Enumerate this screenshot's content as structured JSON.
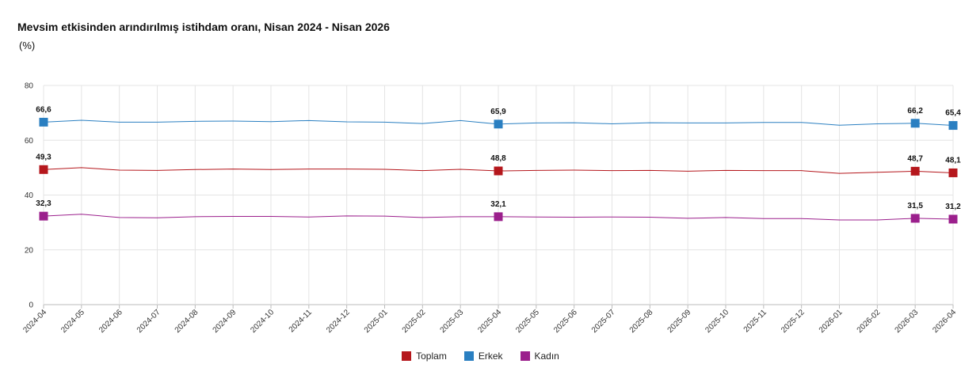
{
  "chart_data": {
    "type": "line",
    "title": "Mevsim etkisinden arındırılmış istihdam oranı, Nisan 2024 - Nisan 2026",
    "subtitle": "(%)",
    "ylim": [
      0,
      80
    ],
    "yticks": [
      0,
      20,
      40,
      60,
      80
    ],
    "grid": true,
    "legend_position": "bottom-center",
    "categories": [
      "2024-04",
      "2024-05",
      "2024-06",
      "2024-07",
      "2024-08",
      "2024-09",
      "2024-10",
      "2024-11",
      "2024-12",
      "2025-01",
      "2025-02",
      "2025-03",
      "2025-04",
      "2025-05",
      "2025-06",
      "2025-07",
      "2025-08",
      "2025-09",
      "2025-10",
      "2025-11",
      "2025-12",
      "2026-01",
      "2026-02",
      "2026-03",
      "2026-04"
    ],
    "series": [
      {
        "name": "Toplam",
        "color": "#b5171c",
        "values": [
          49.3,
          50.0,
          49.1,
          49.0,
          49.3,
          49.5,
          49.3,
          49.5,
          49.5,
          49.4,
          48.9,
          49.4,
          48.8,
          49.0,
          49.1,
          48.9,
          49.0,
          48.7,
          49.0,
          48.9,
          48.9,
          47.9,
          48.3,
          48.7,
          48.1
        ],
        "labels": {
          "0": "49,3",
          "12": "48,8",
          "23": "48,7",
          "24": "48,1"
        }
      },
      {
        "name": "Erkek",
        "color": "#2a7fc1",
        "values": [
          66.6,
          67.3,
          66.6,
          66.6,
          66.9,
          67.0,
          66.8,
          67.2,
          66.7,
          66.6,
          66.1,
          67.2,
          65.9,
          66.3,
          66.4,
          66.0,
          66.4,
          66.3,
          66.3,
          66.5,
          66.5,
          65.5,
          66.0,
          66.2,
          65.4
        ],
        "labels": {
          "0": "66,6",
          "12": "65,9",
          "23": "66,2",
          "24": "65,4"
        }
      },
      {
        "name": "Kadın",
        "color": "#9b1f8c",
        "values": [
          32.3,
          33.0,
          31.8,
          31.7,
          32.1,
          32.2,
          32.2,
          32.0,
          32.4,
          32.3,
          31.8,
          32.1,
          32.1,
          32.0,
          31.9,
          32.0,
          31.9,
          31.5,
          31.8,
          31.4,
          31.4,
          30.9,
          30.9,
          31.5,
          31.2
        ],
        "labels": {
          "0": "32,3",
          "12": "32,1",
          "23": "31,5",
          "24": "31,2"
        }
      }
    ]
  }
}
